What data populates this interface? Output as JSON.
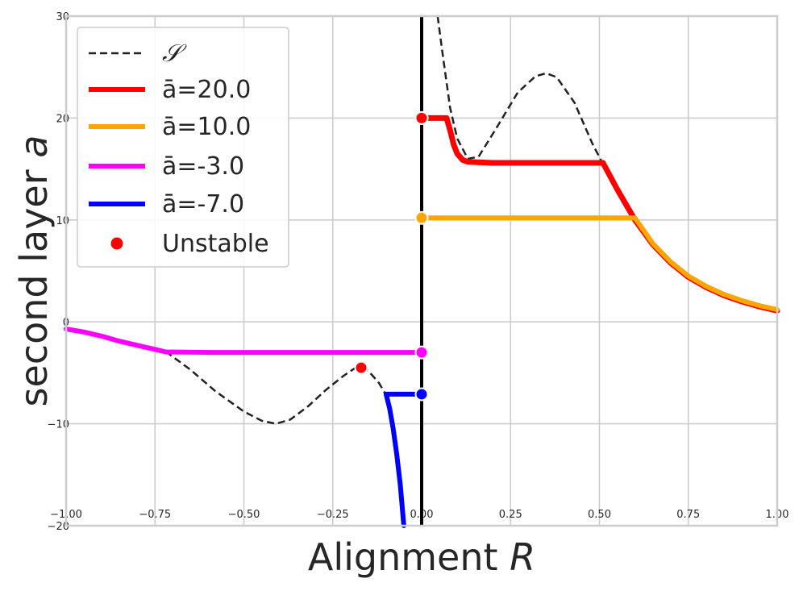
{
  "chart_data": {
    "type": "line",
    "xlabel": "Alignment",
    "xlabel_var": "R",
    "ylabel": "second layer",
    "ylabel_var": "a",
    "xlim": [
      -1.0,
      1.0
    ],
    "ylim": [
      -20,
      30
    ],
    "x_ticks": [
      "−1.00",
      "−0.75",
      "−0.50",
      "−0.25",
      "0.00",
      "0.25",
      "0.50",
      "0.75",
      "1.00"
    ],
    "x_tick_values": [
      -1.0,
      -0.75,
      -0.5,
      -0.25,
      0.0,
      0.25,
      0.5,
      0.75,
      1.0
    ],
    "y_ticks": [
      "−20",
      "−10",
      "0",
      "10",
      "20",
      "30"
    ],
    "y_tick_values": [
      -20,
      -10,
      0,
      10,
      20,
      30
    ],
    "grid": true,
    "legend_position": "top-left",
    "vertical_line_x": 0.0,
    "series": [
      {
        "name": "𝒮",
        "color": "#222222",
        "style": "dashed",
        "segments": [
          [
            [
              -0.72,
              -2.9
            ],
            [
              -0.65,
              -4.7
            ],
            [
              -0.58,
              -6.8
            ],
            [
              -0.5,
              -8.8
            ],
            [
              -0.45,
              -9.7
            ],
            [
              -0.41,
              -10.0
            ],
            [
              -0.37,
              -9.6
            ],
            [
              -0.32,
              -8.3
            ],
            [
              -0.27,
              -6.7
            ],
            [
              -0.22,
              -5.3
            ],
            [
              -0.19,
              -4.6
            ],
            [
              -0.17,
              -4.5
            ],
            [
              -0.15,
              -4.8
            ],
            [
              -0.12,
              -6.0
            ],
            [
              -0.1,
              -7.2
            ]
          ],
          [
            [
              0.045,
              30.0
            ],
            [
              0.06,
              26.0
            ],
            [
              0.08,
              21.0
            ],
            [
              0.1,
              18.0
            ],
            [
              0.13,
              16.0
            ],
            [
              0.16,
              16.2
            ],
            [
              0.21,
              19.0
            ],
            [
              0.27,
              22.5
            ],
            [
              0.32,
              24.1
            ],
            [
              0.35,
              24.4
            ],
            [
              0.38,
              24.0
            ],
            [
              0.43,
              21.5
            ],
            [
              0.48,
              17.5
            ],
            [
              0.51,
              15.5
            ]
          ]
        ]
      },
      {
        "name": "ā=20.0",
        "color": "#ff0000",
        "style": "solid",
        "points": [
          [
            0.0,
            20.0
          ],
          [
            0.07,
            20.0
          ],
          [
            0.08,
            18.8
          ],
          [
            0.09,
            17.4
          ],
          [
            0.1,
            16.5
          ],
          [
            0.115,
            15.9
          ],
          [
            0.13,
            15.7
          ],
          [
            0.2,
            15.6
          ],
          [
            0.35,
            15.6
          ],
          [
            0.51,
            15.6
          ],
          [
            0.55,
            13.0
          ],
          [
            0.6,
            10.0
          ],
          [
            0.65,
            7.6
          ],
          [
            0.7,
            5.8
          ],
          [
            0.75,
            4.4
          ],
          [
            0.8,
            3.4
          ],
          [
            0.85,
            2.6
          ],
          [
            0.9,
            2.0
          ],
          [
            0.95,
            1.5
          ],
          [
            1.0,
            1.1
          ]
        ]
      },
      {
        "name": "ā=10.0",
        "color": "#ffa500",
        "style": "solid",
        "points": [
          [
            0.0,
            10.2
          ],
          [
            0.6,
            10.2
          ],
          [
            0.65,
            7.7
          ],
          [
            0.7,
            5.9
          ],
          [
            0.75,
            4.5
          ],
          [
            0.8,
            3.5
          ],
          [
            0.85,
            2.7
          ],
          [
            0.9,
            2.1
          ],
          [
            0.95,
            1.6
          ],
          [
            1.0,
            1.2
          ]
        ]
      },
      {
        "name": "ā=-3.0",
        "color": "#ff00ff",
        "style": "solid",
        "points": [
          [
            -1.0,
            -0.7
          ],
          [
            -0.95,
            -1.0
          ],
          [
            -0.9,
            -1.4
          ],
          [
            -0.85,
            -1.9
          ],
          [
            -0.8,
            -2.3
          ],
          [
            -0.75,
            -2.7
          ],
          [
            -0.72,
            -2.95
          ],
          [
            -0.6,
            -3.0
          ],
          [
            -0.4,
            -3.0
          ],
          [
            0.0,
            -3.0
          ]
        ]
      },
      {
        "name": "ā=-7.0",
        "color": "#0000ff",
        "style": "solid",
        "points": [
          [
            0.0,
            -7.1
          ],
          [
            -0.1,
            -7.1
          ],
          [
            -0.09,
            -8.5
          ],
          [
            -0.08,
            -10.5
          ],
          [
            -0.07,
            -13.0
          ],
          [
            -0.06,
            -16.0
          ],
          [
            -0.05,
            -20.0
          ]
        ]
      }
    ],
    "unstable_points": {
      "name": "Unstable",
      "color": "#ff0000",
      "points": [
        [
          0.0,
          20.0
        ],
        [
          -0.17,
          -4.5
        ]
      ]
    },
    "endpoint_markers": [
      {
        "x": 0.0,
        "y": 20.0,
        "color": "#ff0000"
      },
      {
        "x": 0.0,
        "y": 10.2,
        "color": "#ffa500"
      },
      {
        "x": 0.0,
        "y": -3.0,
        "color": "#ff00ff"
      },
      {
        "x": 0.0,
        "y": -7.1,
        "color": "#0000ff"
      }
    ]
  }
}
